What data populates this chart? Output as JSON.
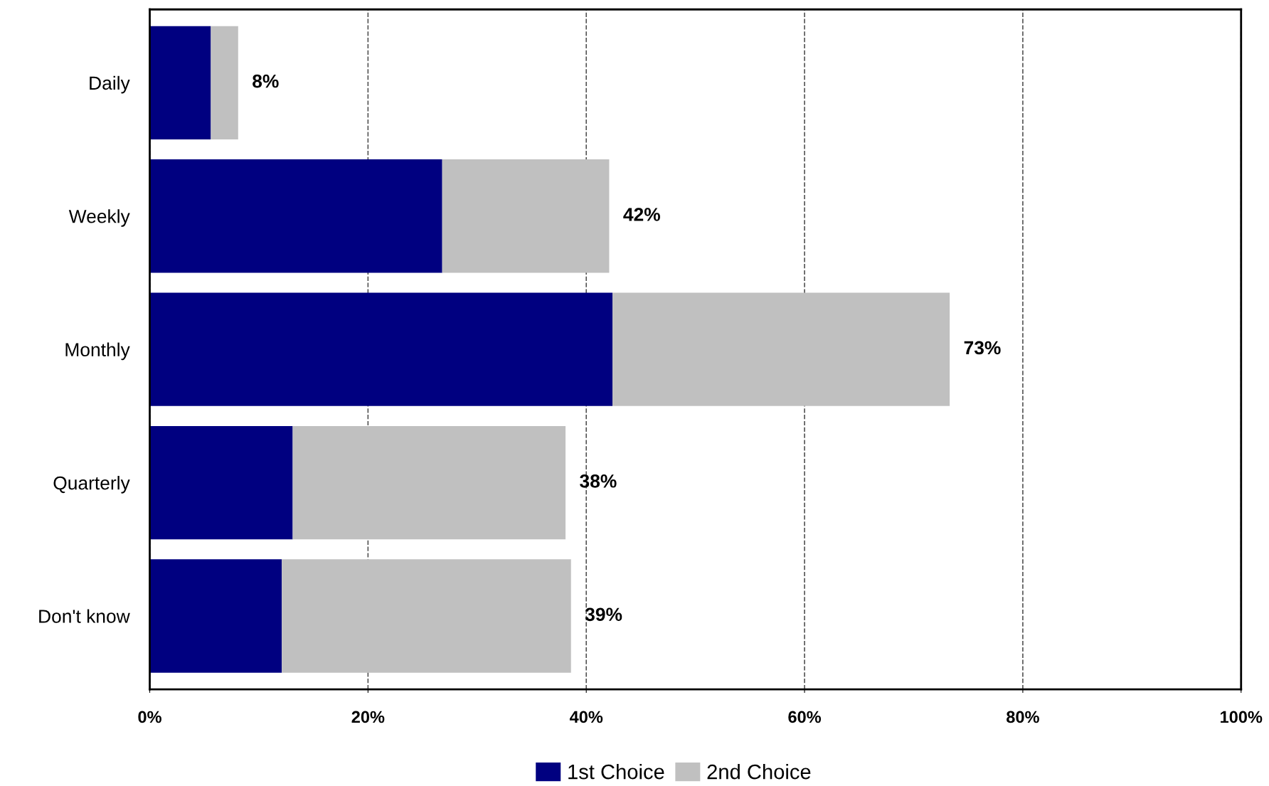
{
  "chart_data": {
    "type": "bar",
    "orientation": "horizontal",
    "stacked": true,
    "categories": [
      "Daily",
      "Weekly",
      "Monthly",
      "Quarterly",
      "Don't know"
    ],
    "series": [
      {
        "name": "1st Choice",
        "color": "#000080",
        "values": [
          5.6,
          26.8,
          42.4,
          13.1,
          12.1
        ]
      },
      {
        "name": "2nd Choice",
        "color": "#c0c0c0",
        "values": [
          2.5,
          15.3,
          30.9,
          25.0,
          26.5
        ]
      }
    ],
    "totals": [
      "8%",
      "42%",
      "73%",
      "38%",
      "39%"
    ],
    "xlim": [
      0,
      100
    ],
    "xticks": [
      {
        "value": 0,
        "label": "0%"
      },
      {
        "value": 20,
        "label": "20%"
      },
      {
        "value": 40,
        "label": "40%"
      },
      {
        "value": 60,
        "label": "60%"
      },
      {
        "value": 80,
        "label": "80%"
      },
      {
        "value": 100,
        "label": "100%"
      }
    ],
    "grid": "x",
    "line_style": "dashed",
    "legend": "bottom"
  }
}
